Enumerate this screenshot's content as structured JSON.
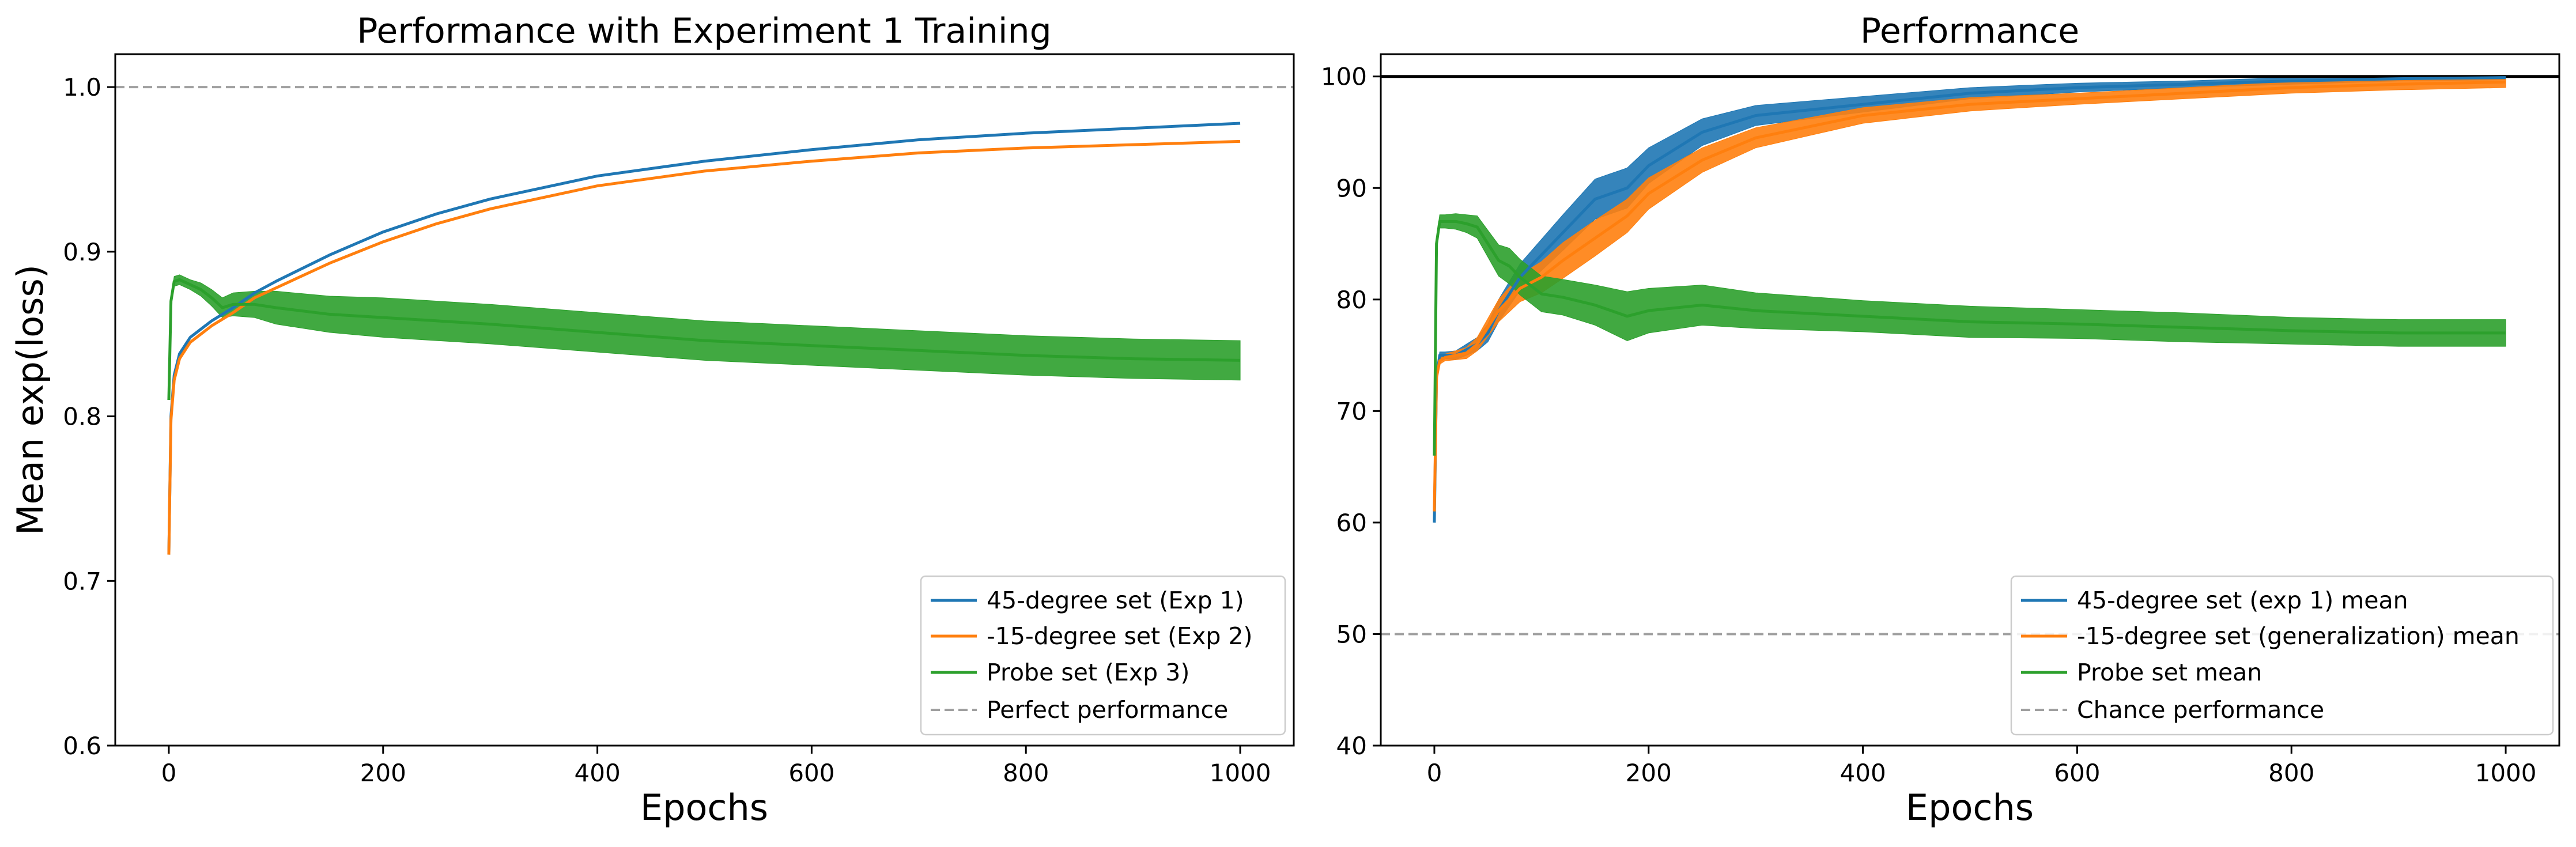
{
  "colors": {
    "exp1": "#1f77b4",
    "exp2": "#ff7f0e",
    "probe": "#2ca02c",
    "reference_dashed": "#a0a0a0",
    "reference_solid": "#000000"
  },
  "chart_data": [
    {
      "type": "line",
      "title": "Performance with Experiment 1 Training",
      "xlabel": "Epochs",
      "ylabel": "Mean exp(loss)",
      "xlim": [
        -50,
        1050
      ],
      "ylim": [
        0.6,
        1.02
      ],
      "xticks": [
        0,
        200,
        400,
        600,
        800,
        1000
      ],
      "yticks": [
        0.6,
        0.7,
        0.8,
        0.9,
        1.0
      ],
      "xtick_labels": [
        "0",
        "200",
        "400",
        "600",
        "800",
        "1000"
      ],
      "ytick_labels": [
        "0.6",
        "0.7",
        "0.8",
        "0.9",
        "1.0"
      ],
      "grid": false,
      "legend_position": "lower-right",
      "reference_line": {
        "name": "Perfect performance",
        "y": 1.0,
        "style": "dashed",
        "color": "#a0a0a0"
      },
      "series": [
        {
          "name": "45-degree set (Exp 1)",
          "color": "#1f77b4",
          "x": [
            0,
            2,
            5,
            10,
            20,
            30,
            40,
            60,
            80,
            100,
            150,
            200,
            250,
            300,
            400,
            500,
            600,
            700,
            800,
            900,
            1000
          ],
          "y": [
            0.716,
            0.8,
            0.825,
            0.838,
            0.848,
            0.853,
            0.858,
            0.866,
            0.875,
            0.882,
            0.898,
            0.912,
            0.923,
            0.932,
            0.946,
            0.955,
            0.962,
            0.968,
            0.972,
            0.975,
            0.978
          ]
        },
        {
          "name": "-15-degree set (Exp 2)",
          "color": "#ff7f0e",
          "x": [
            0,
            2,
            5,
            10,
            20,
            30,
            40,
            60,
            80,
            100,
            150,
            200,
            250,
            300,
            400,
            500,
            600,
            700,
            800,
            900,
            1000
          ],
          "y": [
            0.716,
            0.798,
            0.822,
            0.835,
            0.845,
            0.85,
            0.855,
            0.863,
            0.872,
            0.878,
            0.893,
            0.906,
            0.917,
            0.926,
            0.94,
            0.949,
            0.955,
            0.96,
            0.963,
            0.965,
            0.967
          ]
        },
        {
          "name": "Probe set (Exp 3)",
          "color": "#2ca02c",
          "x": [
            0,
            2,
            5,
            10,
            20,
            30,
            40,
            50,
            60,
            80,
            100,
            150,
            200,
            300,
            400,
            500,
            600,
            700,
            800,
            900,
            1000
          ],
          "y": [
            0.81,
            0.87,
            0.882,
            0.883,
            0.88,
            0.877,
            0.872,
            0.866,
            0.868,
            0.868,
            0.866,
            0.862,
            0.86,
            0.856,
            0.851,
            0.846,
            0.843,
            0.84,
            0.837,
            0.835,
            0.834
          ],
          "band_halfwidth": [
            0,
            0.002,
            0.003,
            0.003,
            0.003,
            0.004,
            0.005,
            0.006,
            0.007,
            0.008,
            0.01,
            0.011,
            0.012,
            0.012,
            0.012,
            0.012,
            0.012,
            0.012,
            0.012,
            0.012,
            0.012
          ]
        }
      ]
    },
    {
      "type": "line",
      "title": "Performance",
      "xlabel": "Epochs",
      "ylabel": "",
      "xlim": [
        -50,
        1050
      ],
      "ylim": [
        40,
        102
      ],
      "xticks": [
        0,
        200,
        400,
        600,
        800,
        1000
      ],
      "yticks": [
        40,
        50,
        60,
        70,
        80,
        90,
        100
      ],
      "xtick_labels": [
        "0",
        "200",
        "400",
        "600",
        "800",
        "1000"
      ],
      "ytick_labels": [
        "40",
        "50",
        "60",
        "70",
        "80",
        "90",
        "100"
      ],
      "grid": false,
      "legend_position": "lower-right",
      "reference_lines": [
        {
          "name": "Chance performance",
          "y": 50,
          "style": "dashed",
          "color": "#a0a0a0"
        },
        {
          "name": "",
          "y": 100,
          "style": "solid",
          "color": "#000000"
        }
      ],
      "series": [
        {
          "name": "45-degree set (exp 1) mean",
          "color": "#1f77b4",
          "x": [
            0,
            2,
            5,
            10,
            20,
            30,
            40,
            50,
            60,
            80,
            100,
            120,
            150,
            180,
            200,
            250,
            300,
            350,
            400,
            500,
            600,
            700,
            800,
            900,
            1000
          ],
          "y": [
            60,
            73,
            75,
            75,
            75,
            75.5,
            76,
            77,
            79,
            82,
            84,
            86,
            89,
            90,
            92,
            95,
            96.5,
            97,
            97.5,
            98.5,
            99,
            99.3,
            99.6,
            99.8,
            99.9
          ],
          "band_halfwidth": [
            0,
            0.3,
            0.3,
            0.3,
            0.4,
            0.5,
            0.6,
            0.8,
            1.0,
            1.2,
            1.4,
            1.6,
            1.8,
            1.8,
            1.6,
            1.2,
            0.9,
            0.8,
            0.7,
            0.5,
            0.4,
            0.3,
            0.3,
            0.2,
            0.2
          ]
        },
        {
          "name": "-15-degree set (generalization) mean",
          "color": "#ff7f0e",
          "x": [
            0,
            2,
            5,
            10,
            20,
            30,
            40,
            50,
            60,
            80,
            100,
            120,
            150,
            180,
            200,
            250,
            300,
            350,
            400,
            500,
            600,
            700,
            800,
            900,
            1000
          ],
          "y": [
            61,
            73,
            74.5,
            74.8,
            75,
            75.2,
            76,
            77.5,
            79,
            81,
            82,
            83.5,
            85.5,
            87.5,
            89.5,
            92.5,
            94.5,
            95.5,
            96.5,
            97.5,
            98,
            98.5,
            99,
            99.3,
            99.5
          ],
          "band_halfwidth": [
            0,
            0.3,
            0.3,
            0.3,
            0.4,
            0.5,
            0.6,
            0.8,
            1.0,
            1.2,
            1.4,
            1.6,
            1.6,
            1.5,
            1.4,
            1.1,
            0.9,
            0.8,
            0.7,
            0.6,
            0.5,
            0.5,
            0.5,
            0.5,
            0.5
          ]
        },
        {
          "name": "Probe set mean",
          "color": "#2ca02c",
          "x": [
            0,
            2,
            5,
            10,
            20,
            30,
            40,
            50,
            60,
            70,
            80,
            100,
            120,
            150,
            180,
            200,
            250,
            300,
            400,
            500,
            600,
            700,
            800,
            900,
            1000
          ],
          "y": [
            66,
            85,
            87,
            87,
            87,
            86.8,
            86.5,
            85,
            83.5,
            83,
            82,
            80.5,
            80.2,
            79.5,
            78.5,
            79,
            79.5,
            79,
            78.5,
            78,
            77.8,
            77.5,
            77.2,
            77,
            77
          ],
          "band_halfwidth": [
            0,
            0.6,
            0.6,
            0.6,
            0.7,
            0.8,
            1.0,
            1.2,
            1.4,
            1.6,
            1.6,
            1.6,
            1.6,
            1.8,
            2.2,
            2.0,
            1.8,
            1.6,
            1.4,
            1.4,
            1.3,
            1.3,
            1.2,
            1.2,
            1.2
          ]
        }
      ]
    }
  ]
}
